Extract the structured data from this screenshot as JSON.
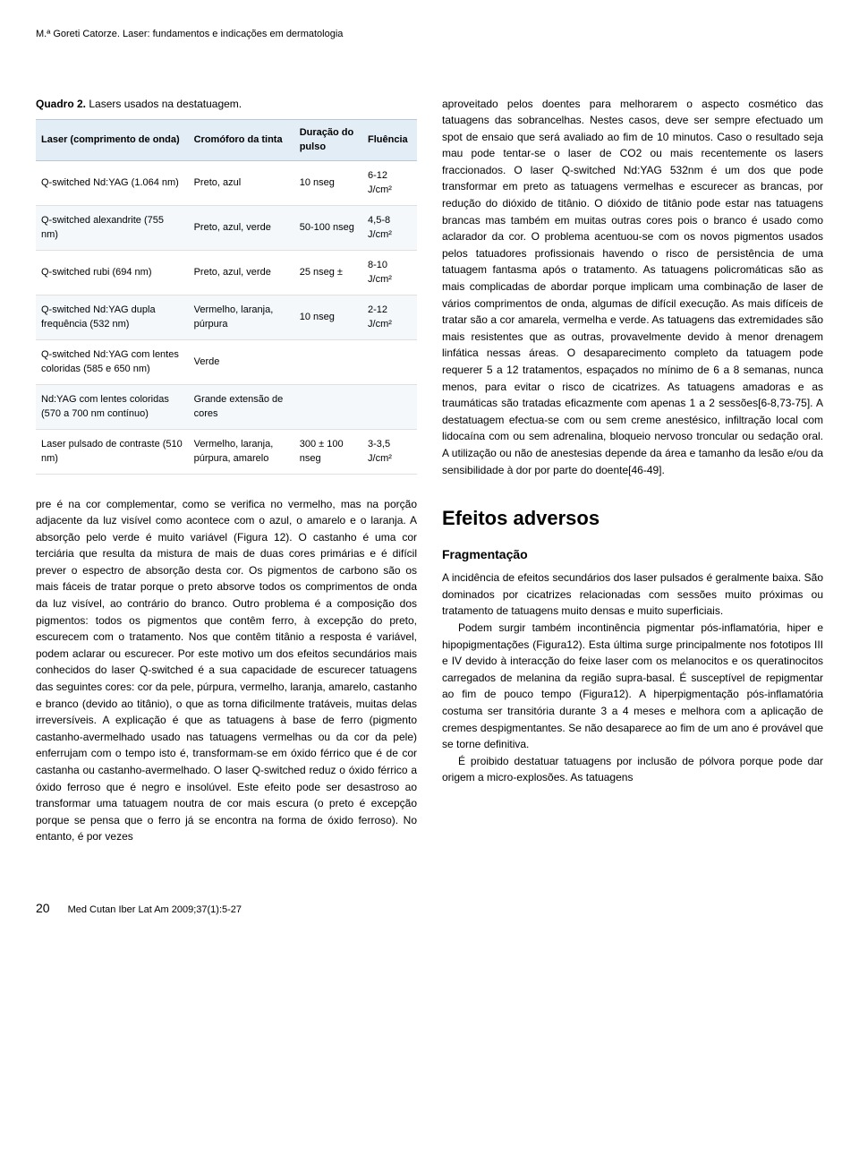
{
  "running_head": "M.ª Goreti Catorze. Laser: fundamentos e indicações em dermatologia",
  "table": {
    "caption_bold": "Quadro 2.",
    "caption_rest": " Lasers usados na destatuagem.",
    "headers": [
      "Laser (comprimento de onda)",
      "Cromóforo da tinta",
      "Duração do pulso",
      "Fluência"
    ],
    "rows": [
      [
        "Q-switched Nd:YAG (1.064 nm)",
        "Preto, azul",
        "10 nseg",
        "6-12 J/cm²"
      ],
      [
        "Q-switched alexandrite (755 nm)",
        "Preto, azul, verde",
        "50-100 nseg",
        "4,5-8 J/cm²"
      ],
      [
        "Q-switched rubi (694 nm)",
        "Preto, azul, verde",
        "25 nseg ±",
        "8-10 J/cm²"
      ],
      [
        "Q-switched Nd:YAG dupla frequência (532 nm)",
        "Vermelho, laranja, púrpura",
        "10 nseg",
        "2-12 J/cm²"
      ],
      [
        "Q-switched Nd:YAG com lentes coloridas (585 e 650 nm)",
        "Verde",
        "",
        ""
      ],
      [
        "Nd:YAG com lentes coloridas (570 a 700 nm contínuo)",
        "Grande extensão de cores",
        "",
        ""
      ],
      [
        "Laser pulsado de contraste (510 nm)",
        "Vermelho, laranja, púrpura, amarelo",
        "300 ± 100 nseg",
        "3-3,5 J/cm²"
      ]
    ],
    "header_bg": "#e3edf5",
    "row_alt_bg": "#f4f8fb",
    "border_color": "#b8c8d6"
  },
  "left_body": "pre é na cor complementar, como se verifica no vermelho, mas na porção adjacente da luz visível como acontece com o azul, o amarelo e o laranja. A absorção pelo verde é muito variável (Figura 12). O castanho é uma cor terciária que resulta da mistura de mais de duas cores primárias e é difícil prever o espectro de absorção desta cor. Os pigmentos de carbono são os mais fáceis de tratar porque o preto absorve todos os comprimentos de onda da luz visível, ao contrário do branco. Outro problema é a composição dos pigmentos: todos os pigmentos que contêm ferro, à excepção do preto, escurecem com o tratamento. Nos que contêm titânio a resposta é variável, podem aclarar ou escurecer. Por este motivo um dos efeitos secundários mais conhecidos do laser Q-switched é a sua capacidade de escurecer tatuagens das seguintes cores: cor da pele, púrpura, vermelho, laranja, amarelo, castanho e branco (devido ao titânio), o que as torna dificilmente tratáveis, muitas delas irreversíveis. A explicação é que as tatuagens à base de ferro (pigmento castanho-avermelhado usado nas tatuagens vermelhas ou da cor da pele) enferrujam com o tempo isto é, transformam-se em óxido férrico que é de cor castanha ou castanho-avermelhado. O laser Q-switched reduz o óxido férrico a óxido ferroso que é negro e insolúvel. Este efeito pode ser desastroso ao transformar uma tatuagem noutra de cor mais escura (o preto é excepção porque se pensa que o ferro já se encontra na forma de óxido ferroso). No entanto, é por vezes",
  "right_body_p1": "aproveitado pelos doentes para melhorarem o aspecto cosmético das tatuagens das sobrancelhas. Nestes casos, deve ser sempre efectuado um spot de ensaio que será avaliado ao fim de 10 minutos. Caso o resultado seja mau pode tentar-se o laser de CO2 ou mais recentemente os lasers fraccionados. O laser Q-switched Nd:YAG 532nm é um dos que pode transformar em preto as tatuagens vermelhas e escurecer as brancas, por redução do dióxido de titânio. O dióxido de titânio pode estar nas tatuagens brancas mas também em muitas outras cores pois o branco é usado como aclarador da cor. O problema acentuou-se com os novos pigmentos usados pelos tatuadores profissionais havendo o risco de persistência de uma tatuagem fantasma após o tratamento. As tatuagens policromáticas são as mais complicadas de abordar porque implicam uma combinação de laser de vários comprimentos de onda, algumas de difícil execução. As mais difíceis de tratar são a cor amarela, vermelha e verde. As tatuagens das extremidades são mais resistentes que as outras, provavelmente devido à menor drenagem linfática nessas áreas. O desaparecimento completo da tatuagem pode requerer 5 a 12 tratamentos, espaçados no mínimo de 6 a 8 semanas, nunca menos, para evitar o risco de cicatrizes. As tatuagens amadoras e as traumáticas são tratadas eficazmente com apenas 1 a 2 sessões[6-8,73-75]. A destatuagem efectua-se com ou sem creme anestésico, infiltração local com lidocaína com ou sem adrenalina, bloqueio nervoso troncular ou sedação oral. A utilização ou não de anestesias depende da área e tamanho da lesão e/ou da sensibilidade à dor por parte do doente[46-49].",
  "section_title": "Efeitos adversos",
  "subsection_title": "Fragmentação",
  "frag_p1": "A incidência de efeitos secundários dos laser pulsados é geralmente baixa. São dominados por cicatrizes relacionadas com sessões muito próximas ou tratamento de tatuagens muito densas e muito superficiais.",
  "frag_p2": "Podem surgir também incontinência pigmentar pós-inflamatória, hiper e hipopigmentações (Figura12). Esta última surge principalmente nos fototipos III e IV devido à interacção do feixe laser com os melanocitos e os queratinocitos carregados de melanina da região supra-basal. É susceptível de repigmentar ao fim de pouco tempo (Figura12). A hiperpigmentação pós-inflamatória costuma ser transitória durante 3 a 4 meses e melhora com a aplicação de cremes despigmentantes. Se não desaparece ao fim de um ano é provável que se torne definitiva.",
  "frag_p3": "É proibido destatuar tatuagens por inclusão de pólvora porque pode dar origem a micro-explosões. As tatuagens",
  "footer": {
    "page_num": "20",
    "citation": "Med Cutan Iber Lat Am 2009;37(1):5-27"
  }
}
